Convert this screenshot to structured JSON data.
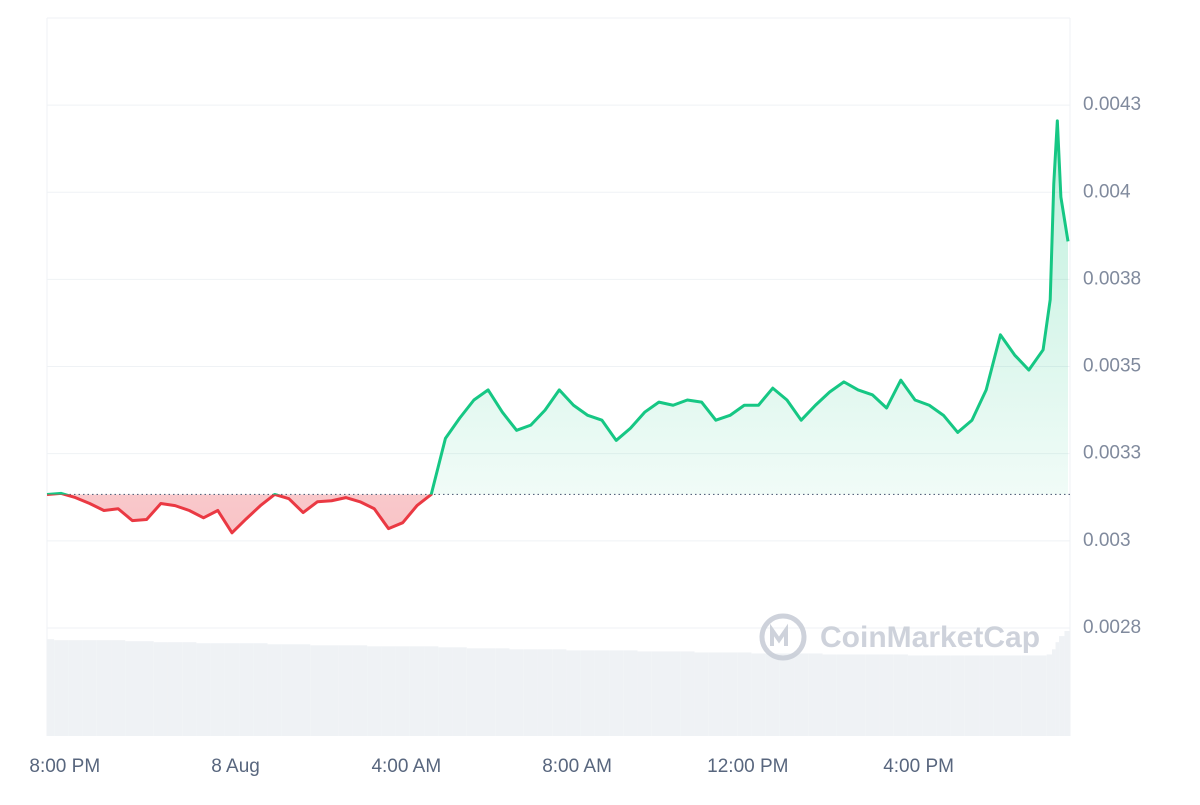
{
  "chart_data": {
    "type": "line",
    "watermark": "CoinMarketCap",
    "x": [
      "7:35 PM",
      "7:55 PM",
      "8:15 PM",
      "8:35 PM",
      "8:55 PM",
      "9:15 PM",
      "9:35 PM",
      "9:55 PM",
      "10:15 PM",
      "10:35 PM",
      "10:55 PM",
      "11:15 PM",
      "11:35 PM",
      "11:55 PM",
      "12:15 AM",
      "12:35 AM",
      "12:55 AM",
      "1:15 AM",
      "1:35 AM",
      "1:55 AM",
      "2:15 AM",
      "2:35 AM",
      "2:55 AM",
      "3:15 AM",
      "3:35 AM",
      "3:55 AM",
      "4:15 AM",
      "4:35 AM",
      "4:55 AM",
      "5:15 AM",
      "5:35 AM",
      "5:55 AM",
      "6:15 AM",
      "6:35 AM",
      "6:55 AM",
      "7:15 AM",
      "7:35 AM",
      "7:55 AM",
      "8:15 AM",
      "8:35 AM",
      "8:55 AM",
      "9:15 AM",
      "9:35 AM",
      "9:55 AM",
      "10:15 AM",
      "10:35 AM",
      "10:55 AM",
      "11:15 AM",
      "11:35 AM",
      "11:55 AM",
      "12:15 PM",
      "12:35 PM",
      "12:55 PM",
      "1:15 PM",
      "1:35 PM",
      "1:55 PM",
      "2:15 PM",
      "2:35 PM",
      "2:55 PM",
      "3:15 PM",
      "3:35 PM",
      "3:55 PM",
      "4:15 PM",
      "4:35 PM",
      "4:55 PM",
      "5:15 PM",
      "5:35 PM",
      "5:55 PM",
      "6:15 PM",
      "6:35 PM",
      "6:55 PM",
      "7:05 PM",
      "7:10 PM",
      "7:15 PM",
      "7:20 PM",
      "7:30 PM"
    ],
    "values": [
      0.003133,
      0.003136,
      0.003124,
      0.003107,
      0.003087,
      0.003092,
      0.003058,
      0.003061,
      0.003107,
      0.003101,
      0.003087,
      0.003066,
      0.003087,
      0.003023,
      0.003063,
      0.003101,
      0.003133,
      0.003121,
      0.003081,
      0.003112,
      0.003115,
      0.003124,
      0.003112,
      0.003092,
      0.003035,
      0.003052,
      0.003101,
      0.003133,
      0.003294,
      0.003352,
      0.003404,
      0.003433,
      0.003369,
      0.003317,
      0.003332,
      0.003375,
      0.003433,
      0.003389,
      0.00336,
      0.003346,
      0.003288,
      0.003323,
      0.003369,
      0.003398,
      0.003389,
      0.003404,
      0.003398,
      0.003346,
      0.00336,
      0.003389,
      0.003389,
      0.003438,
      0.003404,
      0.003346,
      0.003389,
      0.003427,
      0.003456,
      0.003433,
      0.003419,
      0.003381,
      0.003461,
      0.003404,
      0.003389,
      0.00336,
      0.003311,
      0.003346,
      0.003433,
      0.003591,
      0.003533,
      0.00349,
      0.003548,
      0.003692,
      0.004024,
      0.004205,
      0.003986,
      0.003859
    ],
    "volume": [
      95,
      94,
      94,
      94,
      94,
      94,
      93,
      93,
      92,
      92,
      92,
      91,
      91,
      91,
      91,
      91,
      90,
      90,
      90,
      89,
      89,
      89,
      89,
      88,
      88,
      88,
      88,
      88,
      87,
      87,
      86,
      86,
      86,
      85,
      85,
      85,
      85,
      84,
      84,
      84,
      84,
      84,
      83,
      83,
      83,
      83,
      82,
      82,
      82,
      82,
      81,
      81,
      81,
      81,
      81,
      80,
      80,
      80,
      80,
      80,
      80,
      79,
      79,
      79,
      79,
      79,
      79,
      79,
      79,
      79,
      79,
      80,
      85,
      92,
      98,
      103
    ],
    "reference_price": 0.003133,
    "up_color": "#16c784",
    "down_color": "#ea3943",
    "volume_color": "#eff2f5",
    "xlim": [
      "7:35 PM",
      "7:30 PM"
    ],
    "xticks": [
      "8:00 PM",
      {
        "value": "12:00 AM",
        "label": "8 Aug"
      },
      "4:00 AM",
      "8:00 AM",
      "12:00 PM",
      "4:00 PM"
    ],
    "ylim": [
      0.00244,
      0.0045
    ],
    "yticks": [
      {
        "value": 0.00275,
        "label": "0.0028"
      },
      0.003,
      {
        "value": 0.00325,
        "label": "0.0033"
      },
      0.0035,
      {
        "value": 0.00375,
        "label": "0.0038"
      },
      0.004,
      {
        "value": 0.00425,
        "label": "0.0043"
      }
    ],
    "grid": true
  }
}
